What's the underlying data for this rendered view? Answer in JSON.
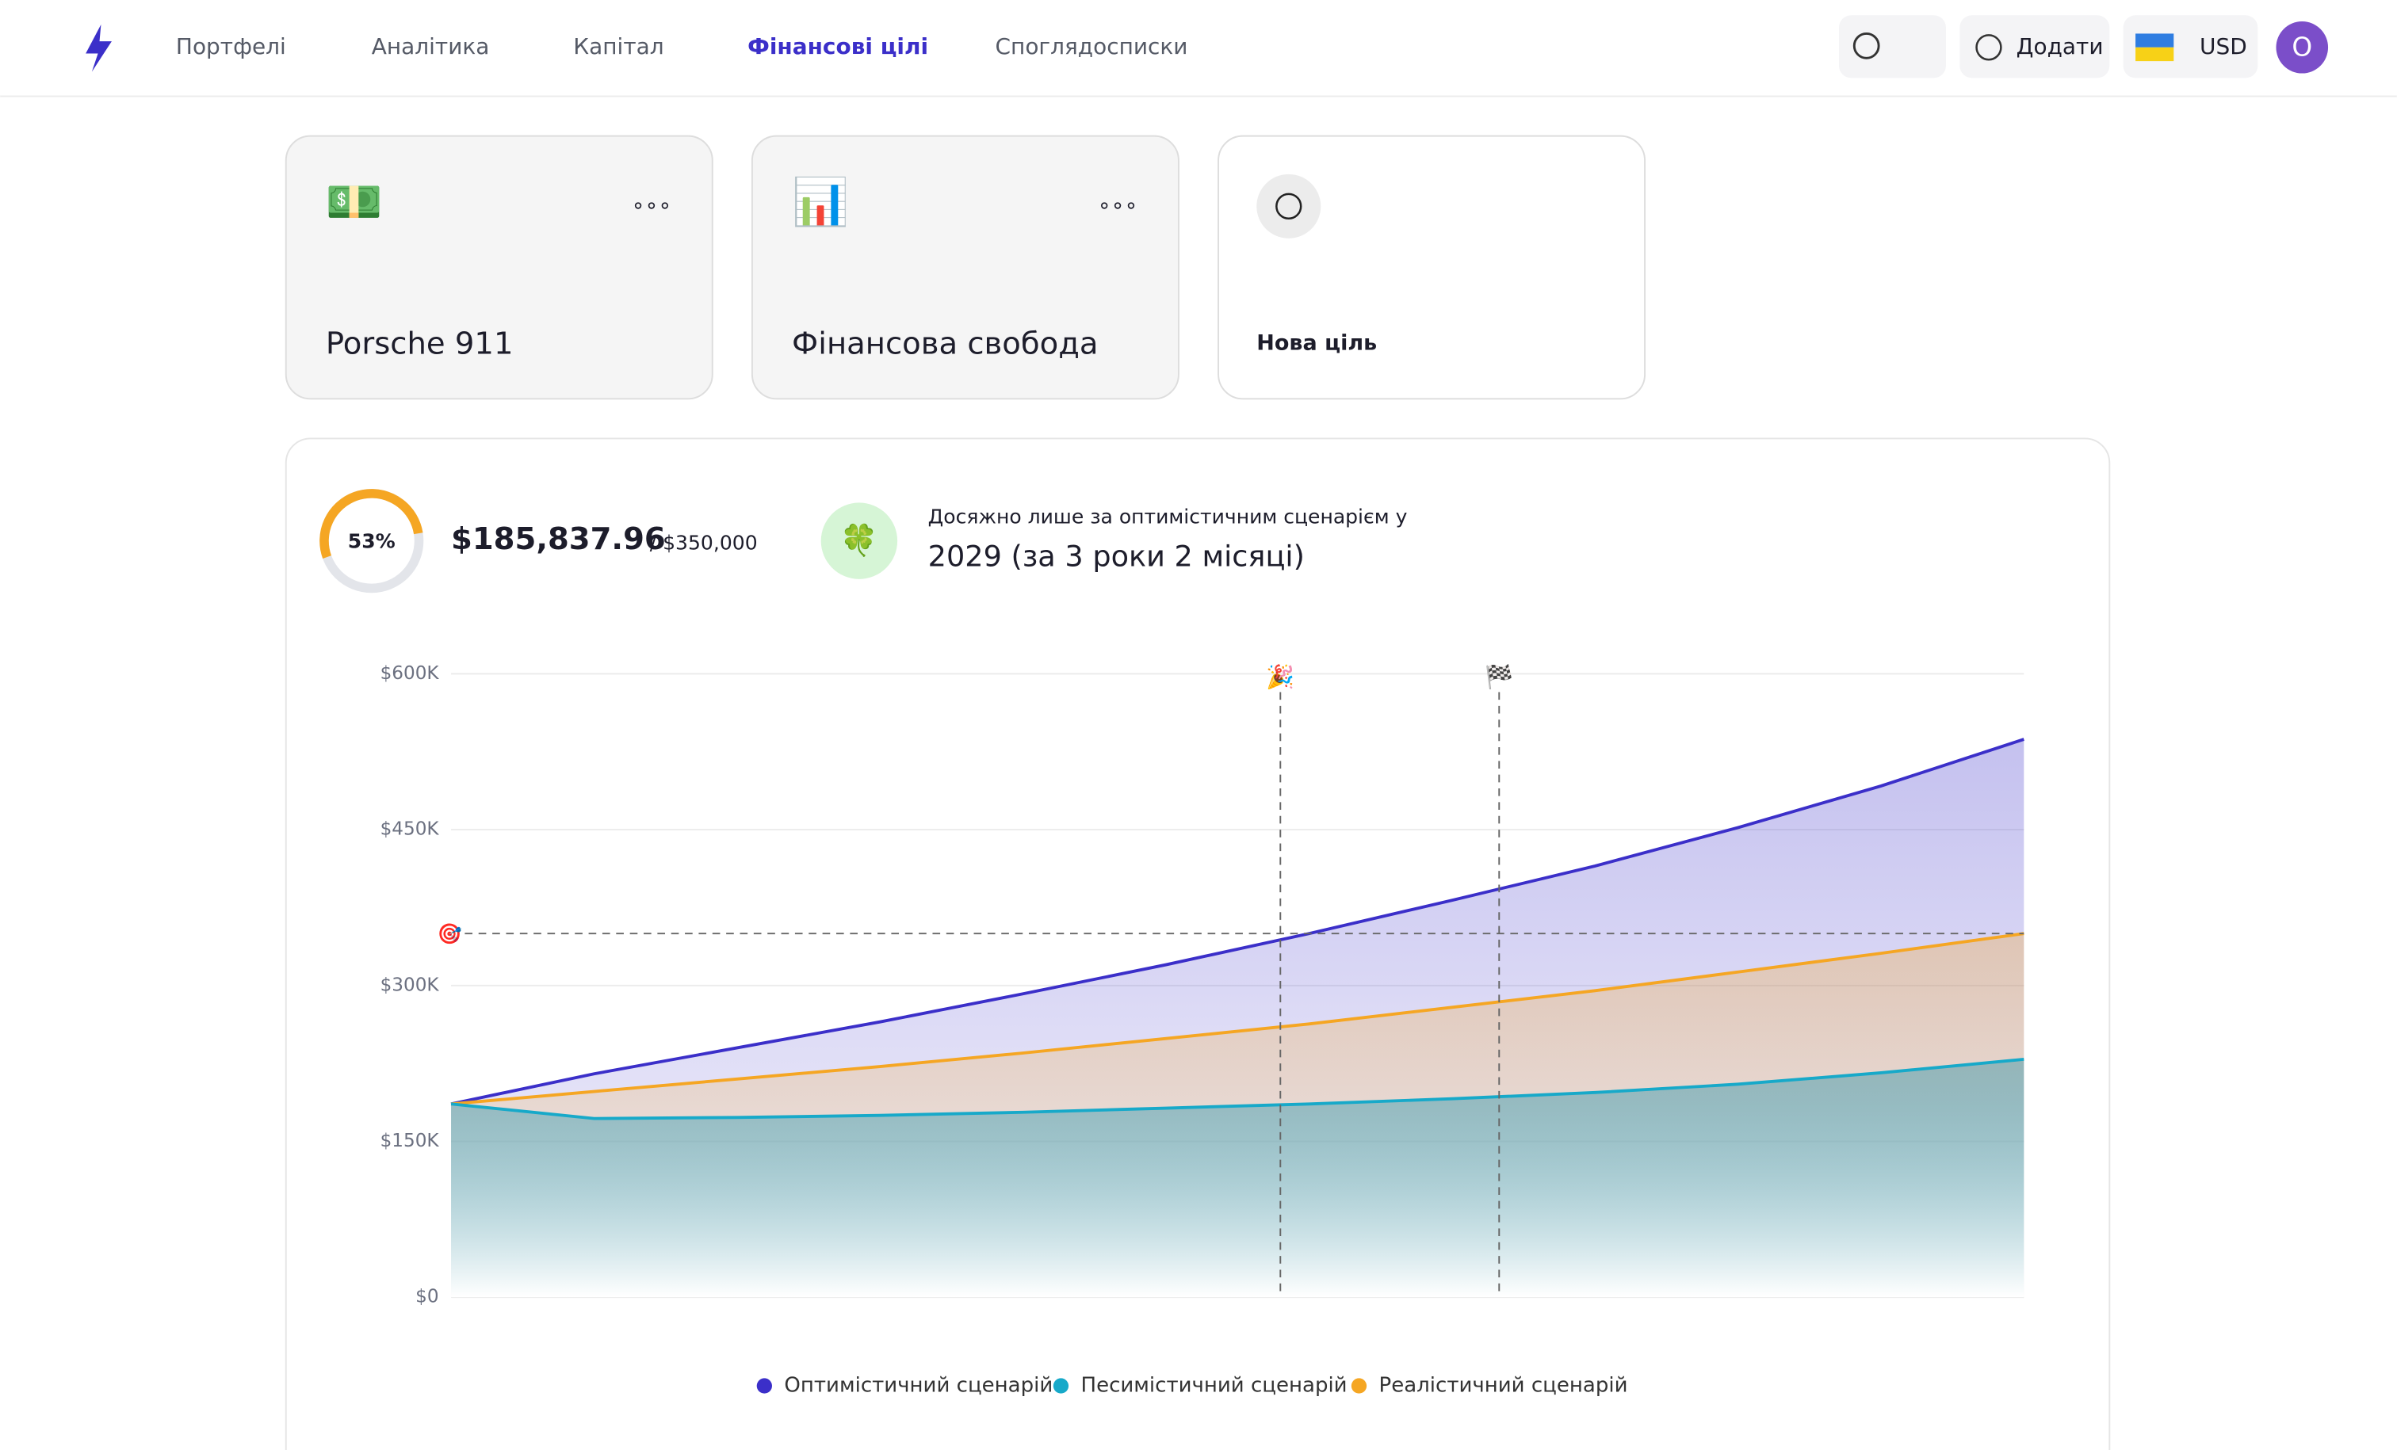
{
  "nav": {
    "items": [
      "Портфелі",
      "Аналітика",
      "Капітал",
      "Фінансові цілі",
      "Споглядосписки"
    ],
    "active_index": 3
  },
  "actions": {
    "add": "Додати",
    "currency": "USD",
    "avatar": "O"
  },
  "goals": [
    {
      "icon": "💵",
      "name": "Porsche 911"
    },
    {
      "icon": "📊",
      "name": "Фінансова свобода"
    }
  ],
  "new_goal": "Нова ціль",
  "summary": {
    "progress": 53,
    "progress_label": "53%",
    "current": "$185,837.96",
    "target": "/ $350,000",
    "note": "Досяжно лише за оптимістичним сценарієм у",
    "eta": "2029 (за 3 роки 2 місяці)",
    "icon": "🍀"
  },
  "chart_data": {
    "type": "area",
    "ylim": [
      0,
      600000
    ],
    "yticks": [
      {
        "value": 0,
        "label": "$0"
      },
      {
        "value": 150000,
        "label": "$150K"
      },
      {
        "value": 300000,
        "label": "$300K"
      },
      {
        "value": 450000,
        "label": "$450K"
      },
      {
        "value": 600000,
        "label": "$600K"
      }
    ],
    "grid": true,
    "series": [
      {
        "name": "Оптимістичний сценарій",
        "color": "#3b2fc9",
        "values": [
          186000,
          215000,
          240000,
          265000,
          292000,
          320000,
          350000,
          382000,
          415000,
          452000,
          492000,
          537000
        ]
      },
      {
        "name": "Реалістичний сценарій",
        "color": "#f5a623",
        "values": [
          186000,
          198000,
          210000,
          222000,
          235000,
          249000,
          263000,
          279000,
          295000,
          313000,
          331000,
          350000
        ]
      },
      {
        "name": "Песимістичний сценарій",
        "color": "#17a9c9",
        "values": [
          186000,
          172000,
          173000,
          175000,
          178000,
          182000,
          186000,
          191000,
          197000,
          205000,
          216000,
          229000
        ]
      }
    ],
    "legend_order": [
      0,
      2,
      1
    ],
    "target": {
      "label": "🎯",
      "value": 350000
    },
    "markers": [
      {
        "label": "🎉",
        "x": 5.8
      },
      {
        "label": "🏁",
        "x": 7.33
      }
    ]
  }
}
